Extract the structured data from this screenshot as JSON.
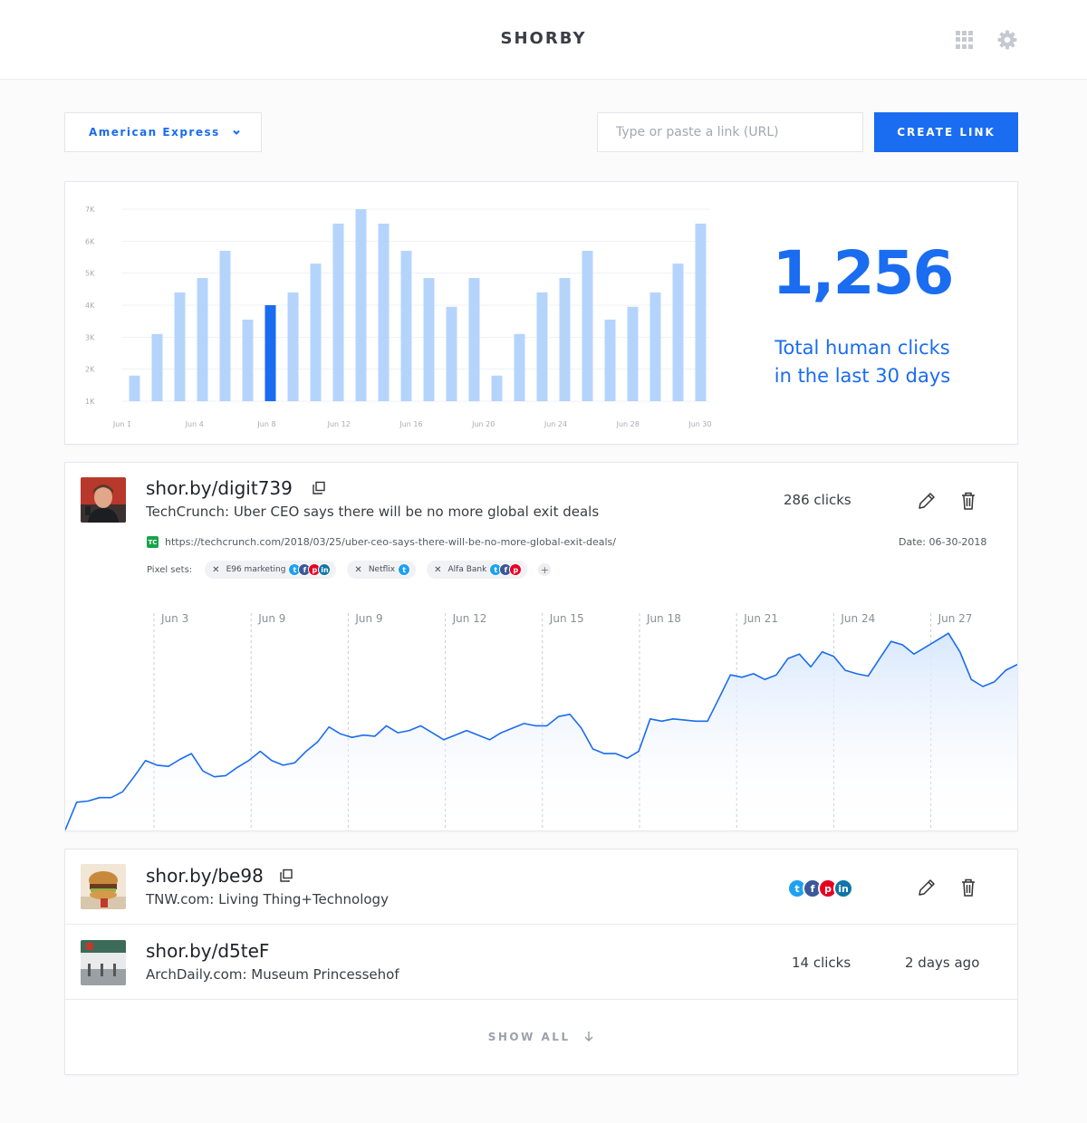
{
  "header": {
    "brand": "SHORBY",
    "apps_icon": "grid-icon",
    "settings_icon": "gear-icon"
  },
  "toolbar": {
    "account_select": "American Express",
    "url_placeholder": "Type or paste a link (URL)",
    "create_label": "CREATE LINK"
  },
  "stats": {
    "total": "1,256",
    "caption_line1": "Total human clicks",
    "caption_line2": "in the last 30 days",
    "accent": "#1a6cf0",
    "bar_color": "#b5d4fc"
  },
  "chart_data": [
    {
      "type": "bar",
      "title": "",
      "ylim": [
        1000,
        7000
      ],
      "y_ticks": [
        "1K",
        "2K",
        "3K",
        "4K",
        "5K",
        "6K",
        "7K"
      ],
      "x_tick_labels": [
        "Jun 1",
        "Jun 4",
        "Jun 8",
        "Jun 12",
        "Jun 16",
        "Jun 20",
        "Jun 24",
        "Jun 28",
        "Jun 30"
      ],
      "values": [
        1800,
        3100,
        4400,
        4850,
        5700,
        3550,
        4000,
        4400,
        5300,
        6550,
        7000,
        6550,
        5700,
        4850,
        3950,
        4850,
        1800,
        3100,
        4400,
        4850,
        5700,
        3550,
        3950,
        4400,
        5300,
        6550
      ],
      "highlight_index": 6,
      "grid": true
    },
    {
      "type": "area",
      "title": "",
      "x_tick_labels": [
        "Jun 3",
        "Jun 9",
        "Jun 9",
        "Jun 12",
        "Jun 15",
        "Jun 18",
        "Jun 21",
        "Jun 24",
        "Jun 27"
      ],
      "values": [
        2,
        26,
        27,
        30,
        30,
        35,
        48,
        62,
        58,
        57,
        63,
        68,
        53,
        48,
        49,
        56,
        62,
        70,
        62,
        58,
        60,
        70,
        78,
        91,
        85,
        82,
        84,
        83,
        92,
        86,
        88,
        92,
        86,
        80,
        84,
        88,
        84,
        80,
        86,
        90,
        94,
        92,
        92,
        100,
        102,
        90,
        72,
        68,
        68,
        64,
        70,
        98,
        96,
        98,
        97,
        96,
        96,
        116,
        136,
        134,
        137,
        132,
        136,
        150,
        154,
        143,
        156,
        152,
        140,
        137,
        135,
        150,
        165,
        162,
        154,
        160,
        166,
        172,
        156,
        132,
        126,
        130,
        140,
        145
      ],
      "line_color": "#1a6cf0"
    }
  ],
  "links": [
    {
      "short": "shor.by/digit739",
      "title": "TechCrunch: Uber CEO says there will be no more global exit deals",
      "clicks": "286 clicks",
      "source_badge": "TC",
      "url": "https://techcrunch.com/2018/03/25/uber-ceo-says-there-will-be-no-more-global-exit-deals/",
      "date": "Date: 06-30-2018",
      "pixel_label": "Pixel sets:",
      "pixel_sets": [
        {
          "name": "E96 marketing",
          "icons": [
            "twitter",
            "facebook",
            "pinterest",
            "linkedin"
          ]
        },
        {
          "name": "Netflix",
          "icons": [
            "twitter"
          ]
        },
        {
          "name": "Alfa Bank",
          "icons": [
            "twitter",
            "facebook",
            "pinterest"
          ]
        }
      ]
    },
    {
      "short": "shor.by/be98",
      "title": "TNW.com: Living Thing+Technology",
      "icons": [
        "twitter",
        "facebook",
        "pinterest",
        "linkedin"
      ]
    },
    {
      "short": "shor.by/d5teF",
      "title": "ArchDaily.com: Museum Princessehof",
      "clicks": "14 clicks",
      "ago": "2 days ago"
    }
  ],
  "show_all": "SHOW ALL",
  "social_glyphs": {
    "twitter": "t",
    "facebook": "f",
    "pinterest": "p",
    "linkedin": "in"
  }
}
